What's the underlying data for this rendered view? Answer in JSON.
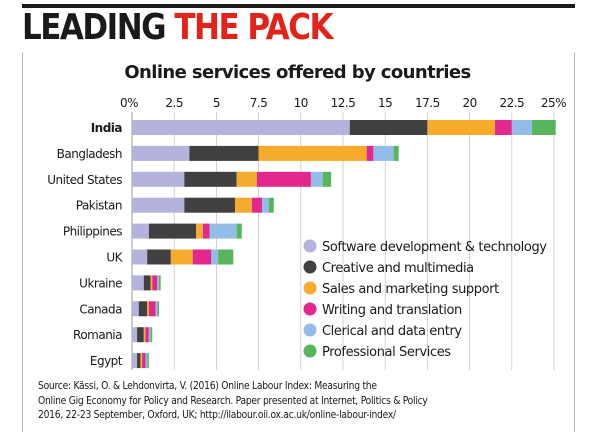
{
  "headline": {
    "part1": "LEADING ",
    "part2": "THE PACK"
  },
  "colors": {
    "headline_accent": "#e2231a",
    "series": [
      "#b3b3dc",
      "#404040",
      "#f6ab2d",
      "#e2288f",
      "#93bde8",
      "#57b55c"
    ]
  },
  "chart_data": {
    "type": "bar",
    "orientation": "horizontal",
    "stacked": true,
    "title": "Online services offered by countries",
    "xlabel": "",
    "ylabel": "",
    "xlim": [
      0,
      25
    ],
    "x_ticks": [
      "0%",
      "2.5",
      "5",
      "7.5",
      "10",
      "12.5",
      "15",
      "17.5",
      "20",
      "22.5",
      "25%"
    ],
    "x_tick_values": [
      0,
      2.5,
      5,
      7.5,
      10,
      12.5,
      15,
      17.5,
      20,
      22.5,
      25
    ],
    "grid": true,
    "legend_position": "bottom-right",
    "categories": [
      "India",
      "Bangladesh",
      "United States",
      "Pakistan",
      "Philippines",
      "UK",
      "Ukraine",
      "Canada",
      "Romania",
      "Egypt"
    ],
    "series": [
      {
        "name": "Software development & technology",
        "values": [
          12.9,
          3.4,
          3.1,
          3.1,
          1.0,
          0.9,
          0.7,
          0.4,
          0.3,
          0.3
        ]
      },
      {
        "name": "Creative and multimedia",
        "values": [
          4.6,
          4.1,
          3.1,
          3.0,
          2.8,
          1.4,
          0.4,
          0.5,
          0.4,
          0.2
        ]
      },
      {
        "name": "Sales and marketing support",
        "values": [
          4.0,
          6.4,
          1.2,
          1.0,
          0.4,
          1.3,
          0.1,
          0.1,
          0.1,
          0.1
        ]
      },
      {
        "name": "Writing and translation",
        "values": [
          1.0,
          0.4,
          3.2,
          0.6,
          0.4,
          1.1,
          0.3,
          0.4,
          0.2,
          0.2
        ]
      },
      {
        "name": "Clerical and data entry",
        "values": [
          1.2,
          1.2,
          0.7,
          0.4,
          1.6,
          0.4,
          0.1,
          0.1,
          0.1,
          0.1
        ]
      },
      {
        "name": "Professional Services",
        "values": [
          1.4,
          0.3,
          0.5,
          0.3,
          0.3,
          0.9,
          0.1,
          0.1,
          0.1,
          0.1
        ]
      }
    ]
  },
  "source": {
    "lines": [
      "Source: Kässi, O. & Lehdonvirta, V. (2016) Online Labour Index: Measuring the",
      "Online Gig Economy for Policy and Research. Paper presented at Internet, Politics & Policy",
      "2016, 22-23 September, Oxford, UK; http://ilabour.oii.ox.ac.uk/online-labour-index/"
    ]
  }
}
